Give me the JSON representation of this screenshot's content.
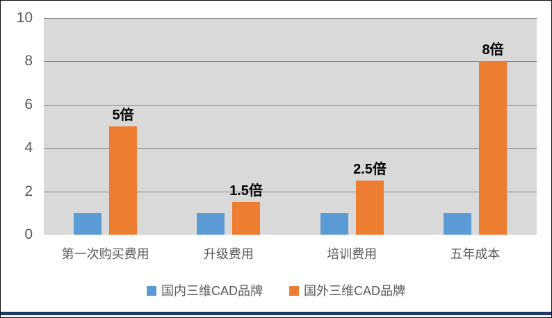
{
  "chart_data": {
    "type": "bar",
    "title": "",
    "xlabel": "",
    "ylabel": "",
    "categories": [
      "第一次购买费用",
      "升级费用",
      "培训费用",
      "五年成本"
    ],
    "series": [
      {
        "name": "国内三维CAD品牌",
        "color": "#5B9BD5",
        "values": [
          1,
          1,
          1,
          1
        ]
      },
      {
        "name": "国外三维CAD品牌",
        "color": "#ED7D31",
        "values": [
          5,
          1.5,
          2.5,
          8
        ]
      }
    ],
    "data_labels": {
      "on_series": "国外三维CAD品牌",
      "labels": [
        "5倍",
        "1.5倍",
        "2.5倍",
        "8倍"
      ]
    },
    "ylim": [
      0,
      10
    ],
    "yticks": [
      0,
      2,
      4,
      6,
      8,
      10
    ],
    "grid": true,
    "legend_position": "bottom",
    "colors": {
      "plot_background": "#D9D9D9",
      "gridline": "#808080",
      "tick_label": "#595959",
      "category_label": "#595959",
      "legend_label": "#595959",
      "data_label": "#000000",
      "accent_bottom_bar": "#1F3864",
      "figure_border": "#0A0A0A"
    }
  }
}
